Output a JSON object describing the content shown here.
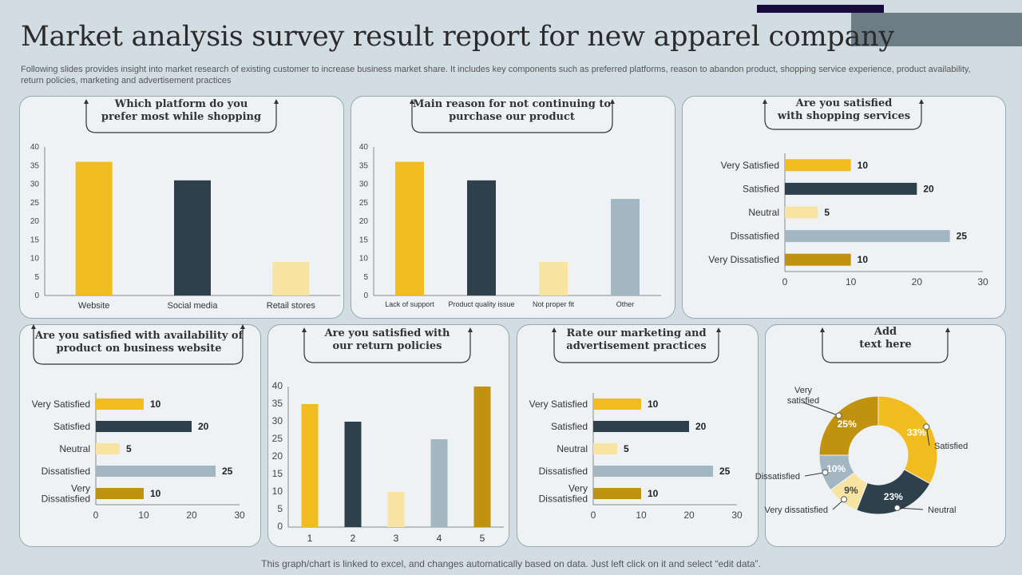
{
  "header": {
    "title": "Market analysis survey result report for new apparel company",
    "subtitle": "Following slides provides insight into market research of existing customer to increase business market share. It includes key components such as preferred platforms, reason to abandon product, shopping service experience, product availability, return policies, marketing and advertisement practices"
  },
  "footer": {
    "note": "This graph/chart is linked to excel,  and changes automatically based on data. Just left click on it and select “edit data”."
  },
  "colors": {
    "yellow": "#f0bc1f",
    "dark": "#2e404b",
    "light_yellow": "#f8e4a2",
    "gray_blue": "#a2b7c2",
    "mustard": "#c0920f",
    "axis": "#555555"
  },
  "chart_data": [
    {
      "id": "platform",
      "type": "bar",
      "title": "Which platform do you prefer most while shopping",
      "title_lines": [
        "Which platform do you",
        "prefer most while shopping"
      ],
      "categories": [
        "Website",
        "Social media",
        "Retail stores"
      ],
      "values": [
        36,
        31,
        9
      ],
      "ylim": [
        0,
        40
      ],
      "yticks": [
        0,
        5,
        10,
        15,
        20,
        25,
        30,
        35,
        40
      ],
      "xlabel": "",
      "ylabel": ""
    },
    {
      "id": "reason",
      "type": "bar",
      "title": "Main reason for not continuing to purchase our product",
      "title_lines": [
        "Main reason for not continuing to",
        "purchase our product"
      ],
      "categories": [
        "Lack of support",
        "Product quality issue",
        "Not proper fit",
        "Other"
      ],
      "values": [
        36,
        31,
        9,
        26
      ],
      "ylim": [
        0,
        40
      ],
      "yticks": [
        0,
        5,
        10,
        15,
        20,
        25,
        30,
        35,
        40
      ],
      "xlabel": "",
      "ylabel": ""
    },
    {
      "id": "services",
      "type": "bar",
      "orientation": "horizontal",
      "title": "Are you satisfied with shopping services",
      "title_lines": [
        "Are you satisfied",
        "with shopping services"
      ],
      "categories": [
        "Very Satisfied",
        "Satisfied",
        "Neutral",
        "Dissatisfied",
        "Very Dissatisfied"
      ],
      "values": [
        10,
        20,
        5,
        25,
        10
      ],
      "xlim": [
        0,
        30
      ],
      "xticks": [
        0,
        10,
        20,
        30
      ]
    },
    {
      "id": "availability",
      "type": "bar",
      "orientation": "horizontal",
      "title": "Are you satisfied with availability of product on business website",
      "title_lines": [
        "Are you satisfied with availability of",
        "product on business website"
      ],
      "categories": [
        "Very Satisfied",
        "Satisfied",
        "Neutral",
        "Dissatisfied",
        "Very Dissatisfied"
      ],
      "category_lines": [
        [
          "Very Satisfied"
        ],
        [
          "Satisfied"
        ],
        [
          "Neutral"
        ],
        [
          "Dissatisfied"
        ],
        [
          "Very",
          "Dissatisfied"
        ]
      ],
      "values": [
        10,
        20,
        5,
        25,
        10
      ],
      "xlim": [
        0,
        30
      ],
      "xticks": [
        0,
        10,
        20,
        30
      ]
    },
    {
      "id": "returns",
      "type": "bar",
      "title": "Are you satisfied with our return policies",
      "title_lines": [
        "Are you satisfied with",
        "our return policies"
      ],
      "categories": [
        "1",
        "2",
        "3",
        "4",
        "5"
      ],
      "values": [
        35,
        30,
        10,
        25,
        40
      ],
      "ylim": [
        0,
        40
      ],
      "yticks": [
        0,
        5,
        10,
        15,
        20,
        25,
        30,
        35,
        40
      ]
    },
    {
      "id": "marketing",
      "type": "bar",
      "orientation": "horizontal",
      "title": "Rate our marketing and advertisement practices",
      "title_lines": [
        "Rate our marketing and",
        "advertisement practices"
      ],
      "categories": [
        "Very Satisfied",
        "Satisfied",
        "Neutral",
        "Dissatisfied",
        "Very Dissatisfied"
      ],
      "category_lines": [
        [
          "Very Satisfied"
        ],
        [
          "Satisfied"
        ],
        [
          "Neutral"
        ],
        [
          "Dissatisfied"
        ],
        [
          "Very",
          "Dissatisfied"
        ]
      ],
      "values": [
        10,
        20,
        5,
        25,
        10
      ],
      "xlim": [
        0,
        30
      ],
      "xticks": [
        0,
        10,
        20,
        30
      ]
    },
    {
      "id": "donut",
      "type": "pie",
      "variant": "donut",
      "title": "Add text here",
      "title_lines": [
        "Add",
        "text here"
      ],
      "slices": [
        {
          "label": "Satisfied",
          "label_lines": [
            "Satisfied"
          ],
          "value": 33,
          "display": "33%"
        },
        {
          "label": "Neutral",
          "label_lines": [
            "Neutral"
          ],
          "value": 23,
          "display": "23%"
        },
        {
          "label": "Very dissatisfied",
          "label_lines": [
            "Very dissatisfied"
          ],
          "value": 9,
          "display": "9%"
        },
        {
          "label": "Dissatisfied",
          "label_lines": [
            "Dissatisfied"
          ],
          "value": 10,
          "display": "10%"
        },
        {
          "label": "Very satisfied",
          "label_lines": [
            "Very",
            "satisfied"
          ],
          "value": 25,
          "display": "25%"
        }
      ]
    }
  ]
}
